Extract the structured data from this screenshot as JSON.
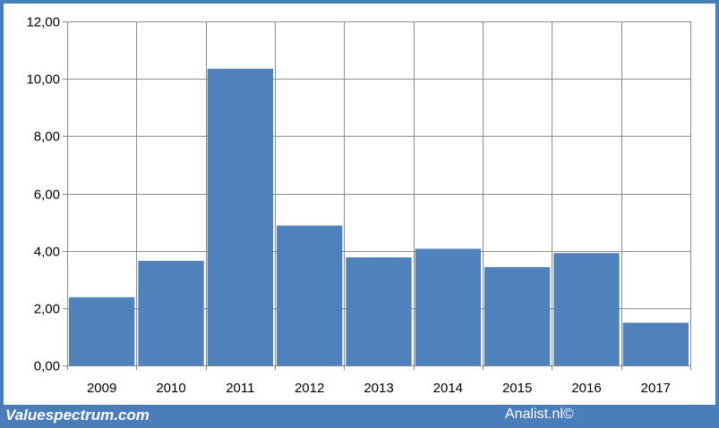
{
  "chart_data": {
    "type": "bar",
    "categories": [
      "2009",
      "2010",
      "2011",
      "2012",
      "2013",
      "2014",
      "2015",
      "2016",
      "2017"
    ],
    "values": [
      2.38,
      3.65,
      10.35,
      4.88,
      3.77,
      4.07,
      3.43,
      3.92,
      1.49
    ],
    "ylim": [
      0,
      12
    ],
    "yticks": [
      0,
      2,
      4,
      6,
      8,
      10,
      12
    ],
    "ytick_labels": [
      "0,00",
      "2,00",
      "4,00",
      "6,00",
      "8,00",
      "10,00",
      "12,00"
    ],
    "title": "",
    "xlabel": "",
    "ylabel": "",
    "grid": true,
    "bar_color": "#4f81bd",
    "grid_color": "#8c8c8c"
  },
  "footer": {
    "left_text": "Valuespectrum.com",
    "right_text": "Analist.nl©"
  },
  "colors": {
    "frame": "#4a7ebb",
    "footer_text": "#ffffff"
  }
}
